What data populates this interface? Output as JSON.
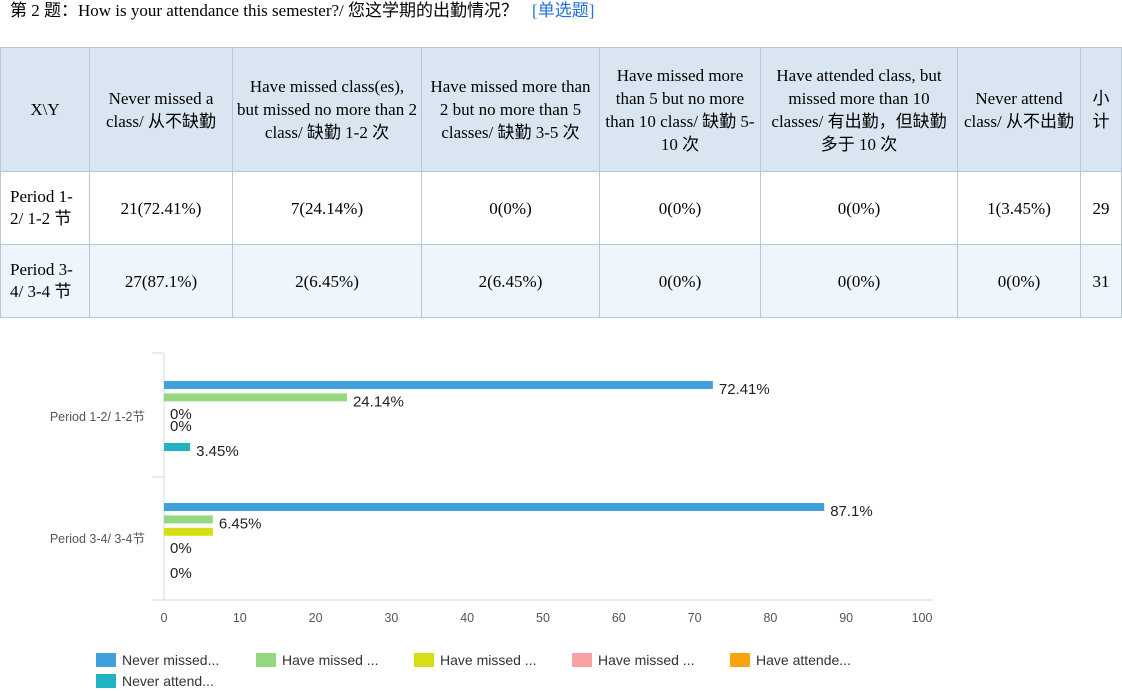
{
  "question": {
    "title": "第 2 题：How is your attendance this semester?/ 您这学期的出勤情况？",
    "type": "[单选题]"
  },
  "table": {
    "corner": "X\\Y",
    "headers": [
      "Never missed a class/ 从不缺勤",
      "Have missed class(es), but missed no more than 2 class/ 缺勤 1-2 次",
      "Have missed more than 2 but no more than 5 classes/ 缺勤 3-5 次",
      "Have missed more than 5 but no more than 10 class/ 缺勤 5-10 次",
      "Have attended class, but missed more than 10 classes/ 有出勤，但缺勤多于 10 次",
      "Never attend class/ 从不出勤",
      "小计"
    ],
    "rows": [
      {
        "label": "Period 1-2/ 1-2 节",
        "cells": [
          "21(72.41%)",
          "7(24.14%)",
          "0(0%)",
          "0(0%)",
          "0(0%)",
          "1(3.45%)",
          "29"
        ]
      },
      {
        "label": "Period 3-4/ 3-4 节",
        "cells": [
          "27(87.1%)",
          "2(6.45%)",
          "2(6.45%)",
          "0(0%)",
          "0(0%)",
          "0(0%)",
          "31"
        ]
      }
    ]
  },
  "chart_data": {
    "type": "bar",
    "orientation": "horizontal",
    "categories": [
      "Period 1-2/ 1-2节",
      "Period 3-4/ 3-4节"
    ],
    "series": [
      {
        "name": "Never missed...",
        "color": "#3fa0dc",
        "values": [
          72.41,
          87.1
        ],
        "labels": [
          "72.41%",
          "87.1%"
        ]
      },
      {
        "name": "Have missed ...",
        "color": "#94d97f",
        "values": [
          24.14,
          6.45
        ],
        "labels": [
          "24.14%",
          "6.45%"
        ]
      },
      {
        "name": "Have missed ...",
        "color": "#d4df15",
        "values": [
          0,
          6.45
        ],
        "labels": [
          "0%",
          ""
        ]
      },
      {
        "name": "Have missed ...",
        "color": "#f7a3a3",
        "values": [
          0,
          0
        ],
        "labels": [
          "0%",
          "0%"
        ]
      },
      {
        "name": "Have attende...",
        "color": "#f8a30f",
        "values": [
          0,
          0
        ],
        "labels": [
          "",
          ""
        ]
      },
      {
        "name": "Never attend...",
        "color": "#20b3c0",
        "values": [
          3.45,
          0
        ],
        "labels": [
          "3.45%",
          "0%"
        ]
      }
    ],
    "xlim": [
      0,
      100
    ],
    "xticks": [
      "0",
      "10",
      "20",
      "30",
      "40",
      "50",
      "60",
      "70",
      "80",
      "90",
      "100"
    ],
    "grid": false,
    "legend_position": "bottom"
  }
}
